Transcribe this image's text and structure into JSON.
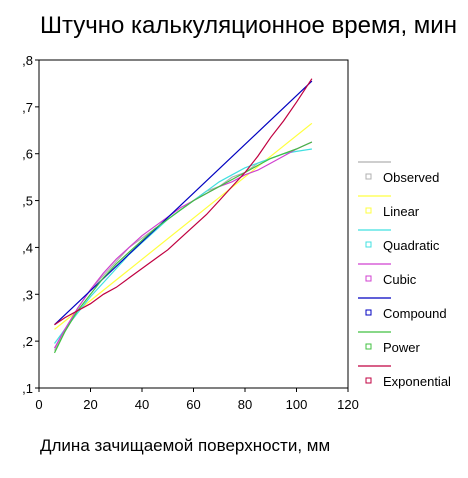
{
  "chart_data": {
    "type": "line",
    "title": "Штучно калькуляционное время, мин",
    "xlabel": "Длина зачищаемой поверхности, мм",
    "ylabel": "",
    "xlim": [
      0,
      120
    ],
    "ylim": [
      0.1,
      0.8
    ],
    "xticks": [
      0,
      20,
      40,
      60,
      80,
      100,
      120
    ],
    "xtick_labels": [
      "0",
      "20",
      "40",
      "60",
      "80",
      "100",
      "120"
    ],
    "yticks": [
      0.1,
      0.2,
      0.3,
      0.4,
      0.5,
      0.6,
      0.7,
      0.8
    ],
    "ytick_labels": [
      ",1",
      ",2",
      ",3",
      ",4",
      ",5",
      ",6",
      ",7",
      ",8"
    ],
    "grid": false,
    "legend_position": "right",
    "series": [
      {
        "name": "Observed",
        "color": "#b0b0b0",
        "x": [
          6,
          10,
          15,
          20,
          25,
          30,
          35,
          40,
          45,
          50,
          55,
          60,
          65,
          70,
          75,
          80,
          85,
          90,
          95,
          100,
          106
        ],
        "y": [
          0.18,
          0.22,
          0.27,
          0.31,
          0.34,
          0.37,
          0.4,
          0.42,
          0.44,
          0.46,
          0.48,
          0.5,
          0.52,
          0.53,
          0.55,
          0.56,
          0.58,
          0.59,
          0.6,
          0.61,
          0.625
        ]
      },
      {
        "name": "Linear",
        "color": "#ffff40",
        "x": [
          6,
          106
        ],
        "y": [
          0.225,
          0.665
        ]
      },
      {
        "name": "Quadratic",
        "color": "#40e0e0",
        "x": [
          6,
          10,
          15,
          20,
          25,
          30,
          35,
          40,
          45,
          50,
          55,
          60,
          65,
          70,
          75,
          80,
          85,
          90,
          95,
          100,
          106
        ],
        "y": [
          0.195,
          0.225,
          0.26,
          0.295,
          0.325,
          0.355,
          0.385,
          0.41,
          0.435,
          0.46,
          0.48,
          0.5,
          0.52,
          0.54,
          0.555,
          0.57,
          0.58,
          0.59,
          0.6,
          0.605,
          0.61
        ]
      },
      {
        "name": "Cubic",
        "color": "#d040d0",
        "x": [
          6,
          10,
          15,
          20,
          25,
          30,
          35,
          40,
          45,
          50,
          55,
          60,
          65,
          70,
          75,
          80,
          85,
          90,
          95,
          100,
          106
        ],
        "y": [
          0.185,
          0.225,
          0.27,
          0.31,
          0.345,
          0.375,
          0.4,
          0.425,
          0.445,
          0.465,
          0.485,
          0.5,
          0.515,
          0.53,
          0.54,
          0.555,
          0.565,
          0.58,
          0.595,
          0.61,
          0.625
        ]
      },
      {
        "name": "Compound",
        "color": "#0000c0",
        "x": [
          6,
          106
        ],
        "y": [
          0.235,
          0.755
        ]
      },
      {
        "name": "Power",
        "color": "#40c040",
        "x": [
          6,
          10,
          15,
          20,
          25,
          30,
          35,
          40,
          45,
          50,
          55,
          60,
          65,
          70,
          75,
          80,
          85,
          90,
          95,
          100,
          106
        ],
        "y": [
          0.175,
          0.22,
          0.265,
          0.3,
          0.335,
          0.365,
          0.39,
          0.415,
          0.44,
          0.46,
          0.48,
          0.5,
          0.515,
          0.53,
          0.545,
          0.56,
          0.575,
          0.59,
          0.6,
          0.61,
          0.625
        ]
      },
      {
        "name": "Exponential",
        "color": "#c00040",
        "x": [
          6,
          10,
          15,
          20,
          25,
          30,
          35,
          40,
          45,
          50,
          55,
          60,
          65,
          70,
          75,
          80,
          85,
          90,
          95,
          100,
          106
        ],
        "y": [
          0.235,
          0.25,
          0.265,
          0.28,
          0.3,
          0.315,
          0.335,
          0.355,
          0.375,
          0.395,
          0.42,
          0.445,
          0.47,
          0.5,
          0.53,
          0.56,
          0.595,
          0.635,
          0.67,
          0.71,
          0.76
        ]
      }
    ]
  }
}
